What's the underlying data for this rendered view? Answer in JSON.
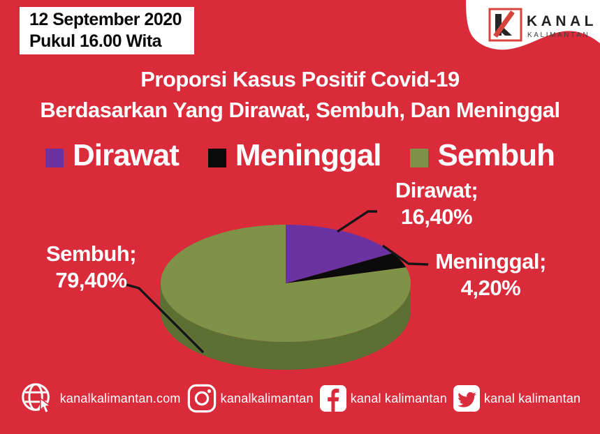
{
  "colors": {
    "background": "#DA2B3B",
    "accent_red": "#D5453E",
    "white": "#FFFFFF",
    "dirawat_purple": "#6B33A2",
    "meninggal_black": "#0B0B0B",
    "sembuh_green": "#7E9248",
    "sembuh_green_side": "#5D7034"
  },
  "header": {
    "date_line1": "12 September 2020",
    "date_line2": "Pukul 16.00 Wita",
    "logo_title": "KANAL",
    "logo_subtitle": "KALIMANTAN"
  },
  "title": {
    "line1": "Proporsi Kasus Positif Covid-19",
    "line2": "Berdasarkan Yang Dirawat, Sembuh, Dan Meninggal"
  },
  "legend": [
    {
      "label": "Dirawat",
      "color": "#6B33A2"
    },
    {
      "label": "Meninggal",
      "color": "#0B0B0B"
    },
    {
      "label": "Sembuh",
      "color": "#7E9248"
    }
  ],
  "chart_data": {
    "type": "pie",
    "style": "3d",
    "title": "Proporsi Kasus Positif Covid-19 Berdasarkan Yang Dirawat, Sembuh, Dan Meninggal",
    "categories": [
      "Dirawat",
      "Meninggal",
      "Sembuh"
    ],
    "values": [
      16.4,
      4.2,
      79.4
    ],
    "unit": "%",
    "colors": [
      "#6B33A2",
      "#0B0B0B",
      "#7E9248"
    ],
    "side_color": "#5D7034",
    "start_angle_deg": -90,
    "direction": "clockwise",
    "legend_position": "top",
    "data_labels": [
      "Dirawat; 16,40%",
      "Meninggal; 4,20%",
      "Sembuh; 79,40%"
    ]
  },
  "pie_labels": {
    "dirawat": {
      "name": "Dirawat;",
      "value": "16,40%"
    },
    "meninggal": {
      "name": "Meninggal;",
      "value": "4,20%"
    },
    "sembuh": {
      "name": "Sembuh;",
      "value": "79,40%"
    }
  },
  "footer": {
    "website": {
      "text": "kanalkalimantan.com"
    },
    "instagram": {
      "text": "kanalkalimantan"
    },
    "facebook": {
      "text": "kanal kalimantan"
    },
    "twitter": {
      "text": "kanal kalimantan"
    }
  }
}
